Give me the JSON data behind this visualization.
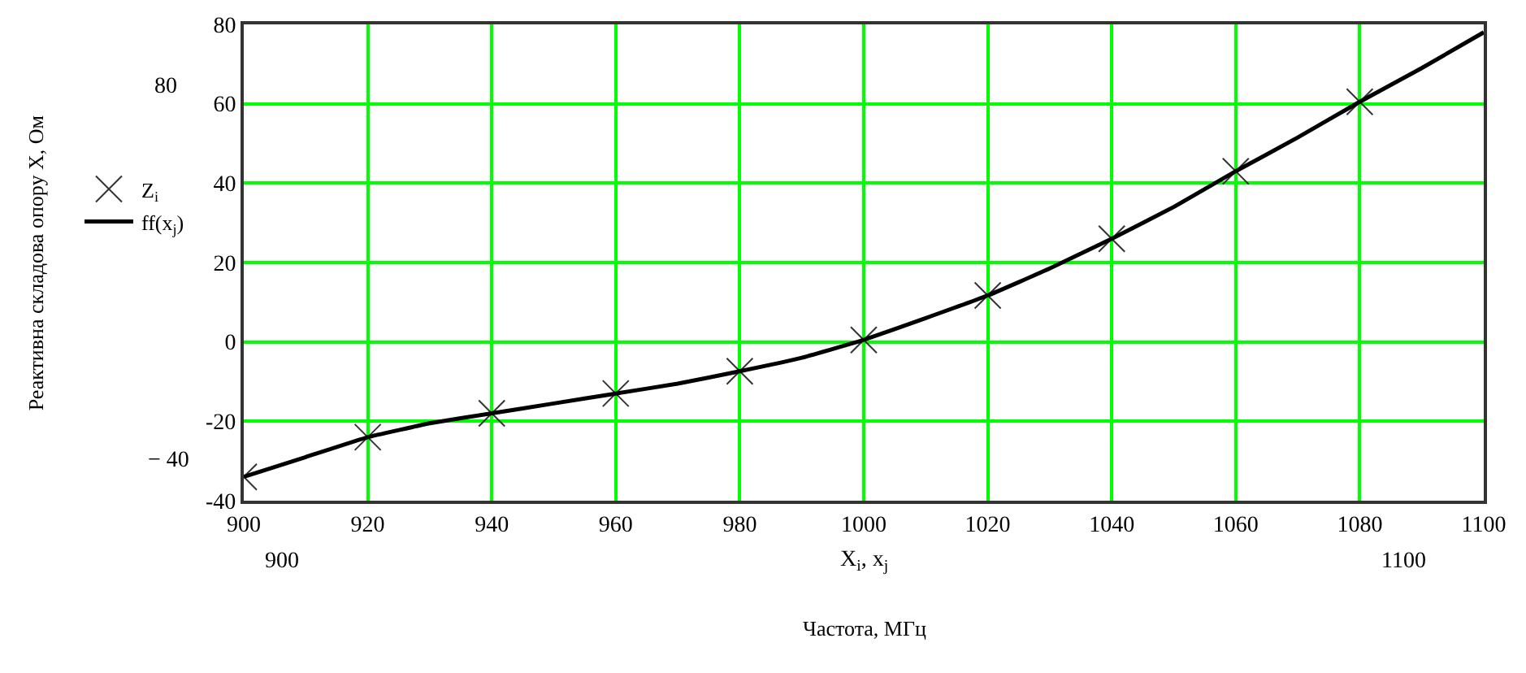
{
  "chart_data": {
    "type": "line",
    "xlim": [
      900,
      1100
    ],
    "xticks": [
      900,
      920,
      940,
      960,
      980,
      1000,
      1020,
      1040,
      1060,
      1080,
      1100
    ],
    "ylim": [
      -40,
      80
    ],
    "yticks": [
      -40,
      -20,
      0,
      20,
      40,
      60,
      80
    ],
    "grid": true,
    "legend": "left",
    "series": [
      {
        "name": "Z$_{i}$",
        "type": "scatter",
        "marker": "cross",
        "color": "#333333",
        "x": [
          900,
          920,
          940,
          960,
          980,
          1000,
          1020,
          1040,
          1060,
          1080
        ],
        "values": [
          -34,
          -24,
          -18,
          -13,
          -7.4,
          0.5,
          11.7,
          26,
          43,
          60.5
        ]
      },
      {
        "name": "ff(x$_{j}$)",
        "marker": "none",
        "line_style": "solid",
        "color": "#000000",
        "x": [
          900,
          910,
          920,
          930,
          940,
          950,
          960,
          970,
          980,
          990,
          1000,
          1010,
          1020,
          1030,
          1040,
          1050,
          1060,
          1070,
          1080,
          1090,
          1100
        ],
        "values": [
          -34,
          -29,
          -24,
          -20.5,
          -18,
          -15.5,
          -13,
          -10.5,
          -7.4,
          -4,
          0.5,
          6,
          11.7,
          18.5,
          26,
          34,
          43,
          51.5,
          60.5,
          69,
          78
        ]
      }
    ],
    "annotations": [
      "80",
      "− 40",
      "900",
      "1100",
      "X$_{i}$, x$_{j}$",
      "Реактивна складова опору X, Ом",
      "Частота, МГц"
    ]
  }
}
